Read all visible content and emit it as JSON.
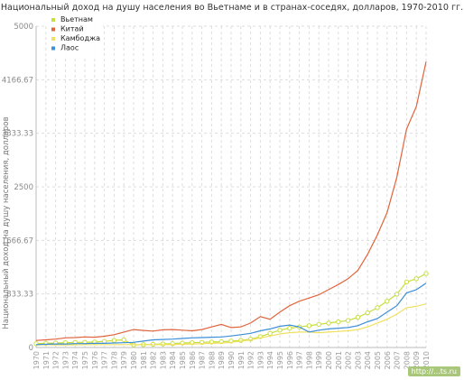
{
  "chart_data": {
    "type": "line",
    "title": "Национальный доход на душу населения во Вьетнаме и в странах-соседях, долларов, 1970-2010 гг.",
    "ylabel": "Национальный доход на душу населения, долларов",
    "xlabel": "",
    "ylim": [
      0,
      5000
    ],
    "yticks": [
      "0",
      "833.33",
      "1666.67",
      "2500",
      "3333.33",
      "4166.67",
      "5000"
    ],
    "ytick_values": [
      0,
      833.33,
      1666.67,
      2500,
      3333.33,
      4166.67,
      5000
    ],
    "x": [
      "1970",
      "1971",
      "1972",
      "1973",
      "1974",
      "1975",
      "1976",
      "1977",
      "1978",
      "1979",
      "1980",
      "1981",
      "1982",
      "1983",
      "1984",
      "1985",
      "1986",
      "1987",
      "1988",
      "1989",
      "1990",
      "1991",
      "1992",
      "1993",
      "1994",
      "1995",
      "1996",
      "1997",
      "1998",
      "1999",
      "2000",
      "2001",
      "2002",
      "2003",
      "2004",
      "2005",
      "2006",
      "2007",
      "2008",
      "2009",
      "2010"
    ],
    "grid": true,
    "legend_position": "top-left",
    "series": [
      {
        "name": "Вьетнам",
        "color": "#c8de3c",
        "marker": "circle",
        "values": [
          60,
          65,
          70,
          75,
          78,
          80,
          85,
          95,
          110,
          120,
          40,
          45,
          50,
          55,
          60,
          70,
          75,
          80,
          85,
          90,
          100,
          110,
          130,
          170,
          220,
          270,
          300,
          320,
          340,
          360,
          380,
          400,
          420,
          470,
          540,
          620,
          720,
          830,
          1020,
          1070,
          1150
        ]
      },
      {
        "name": "Китай",
        "color": "#e0643c",
        "marker": "none",
        "values": [
          110,
          120,
          130,
          150,
          155,
          165,
          160,
          175,
          200,
          240,
          280,
          265,
          255,
          275,
          280,
          270,
          260,
          280,
          320,
          360,
          310,
          320,
          380,
          480,
          440,
          550,
          650,
          720,
          770,
          820,
          900,
          980,
          1070,
          1200,
          1450,
          1750,
          2100,
          2650,
          3400,
          3750,
          4450
        ]
      },
      {
        "name": "Камбоджа",
        "color": "#f0e060",
        "marker": "none",
        "values": [
          40,
          45,
          40,
          40,
          42,
          45,
          45,
          45,
          45,
          45,
          45,
          45,
          45,
          45,
          45,
          50,
          55,
          60,
          65,
          70,
          80,
          100,
          120,
          150,
          180,
          210,
          230,
          240,
          240,
          230,
          240,
          250,
          260,
          280,
          320,
          380,
          440,
          520,
          620,
          640,
          680
        ]
      },
      {
        "name": "Лаос",
        "color": "#3c8fd8",
        "marker": "none",
        "values": [
          45,
          50,
          55,
          55,
          60,
          60,
          65,
          65,
          70,
          75,
          80,
          100,
          120,
          125,
          130,
          140,
          150,
          155,
          160,
          165,
          180,
          200,
          220,
          260,
          290,
          330,
          350,
          320,
          240,
          270,
          290,
          300,
          310,
          340,
          400,
          450,
          550,
          650,
          850,
          900,
          1000
        ]
      }
    ]
  },
  "watermark": "http://...ts.ru"
}
